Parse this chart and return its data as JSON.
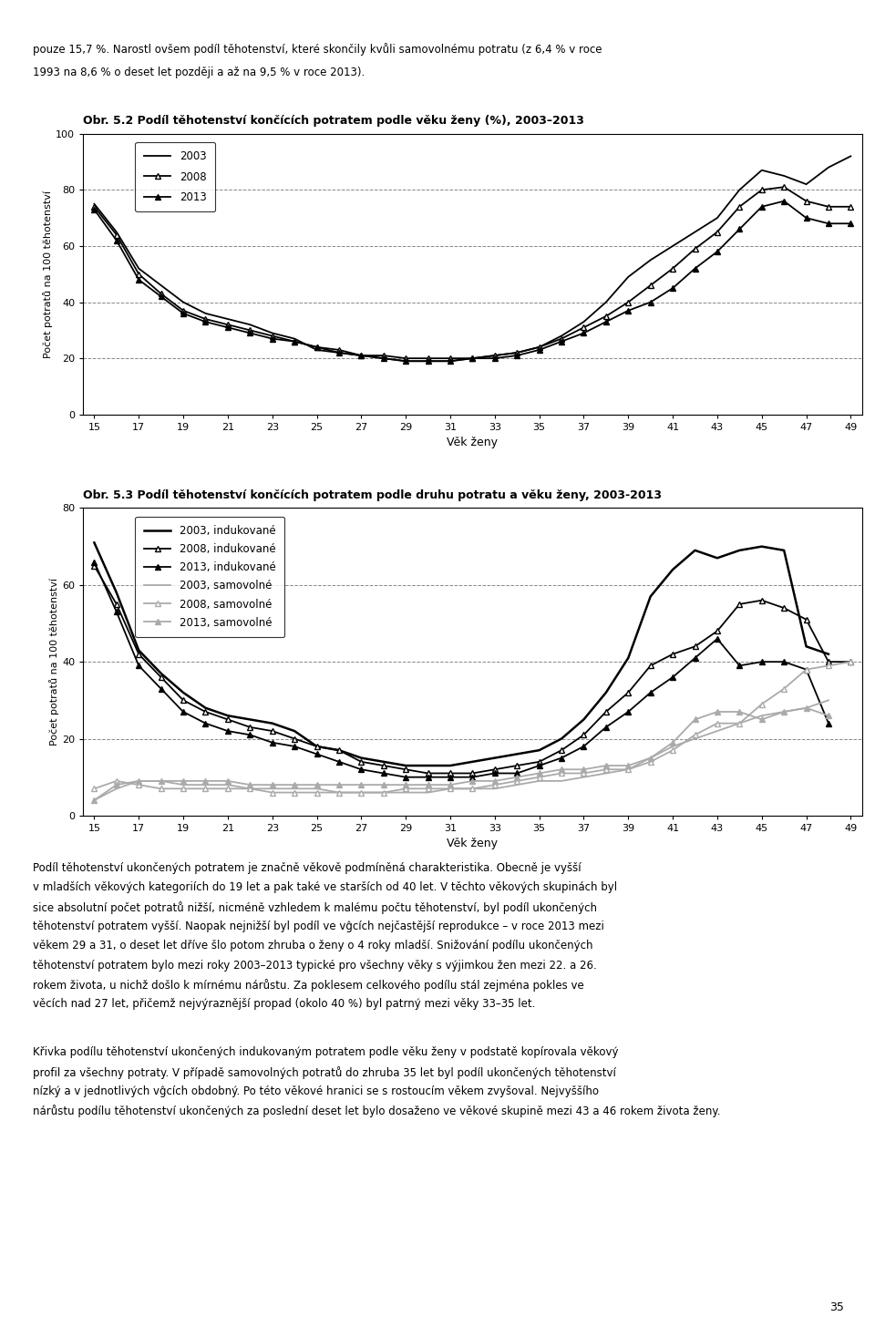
{
  "title1": "Obr. 5.2 Podíl těhotenství končících potratem podle věku ženy (%), 2003–2013",
  "title2": "Obr. 5.3 Podíl těhotenství končících potratem podle druhu potratu a věku ženy, 2003-2013",
  "xlabel": "Věk ženy",
  "ylabel": "Počet potratů na 100 těhotenství",
  "ages": [
    15,
    16,
    17,
    18,
    19,
    20,
    21,
    22,
    23,
    24,
    25,
    26,
    27,
    28,
    29,
    30,
    31,
    32,
    33,
    34,
    35,
    36,
    37,
    38,
    39,
    40,
    41,
    42,
    43,
    44,
    45,
    46,
    47,
    48,
    49
  ],
  "chart1": {
    "y2003": [
      75,
      65,
      52,
      46,
      40,
      36,
      34,
      32,
      29,
      27,
      23,
      22,
      21,
      20,
      19,
      19,
      19,
      20,
      21,
      22,
      24,
      28,
      33,
      40,
      49,
      55,
      60,
      65,
      70,
      80,
      87,
      85,
      82,
      88,
      92
    ],
    "y2008": [
      74,
      64,
      50,
      43,
      37,
      34,
      32,
      30,
      28,
      26,
      24,
      23,
      21,
      21,
      20,
      20,
      20,
      20,
      21,
      22,
      24,
      27,
      31,
      35,
      40,
      46,
      52,
      59,
      65,
      74,
      80,
      81,
      76,
      74,
      74
    ],
    "y2013": [
      73,
      62,
      48,
      42,
      36,
      33,
      31,
      29,
      27,
      26,
      24,
      22,
      21,
      20,
      19,
      19,
      19,
      20,
      20,
      21,
      23,
      26,
      29,
      33,
      37,
      40,
      45,
      52,
      58,
      66,
      74,
      76,
      70,
      68,
      68
    ]
  },
  "chart2_induced": {
    "y2003": [
      71,
      58,
      43,
      37,
      32,
      28,
      26,
      25,
      24,
      22,
      18,
      17,
      15,
      14,
      13,
      13,
      13,
      14,
      15,
      16,
      17,
      20,
      25,
      32,
      41,
      57,
      64,
      69,
      67,
      69,
      70,
      69,
      44,
      42,
      null
    ],
    "y2008": [
      65,
      55,
      42,
      36,
      30,
      27,
      25,
      23,
      22,
      20,
      18,
      17,
      14,
      13,
      12,
      11,
      11,
      11,
      12,
      13,
      14,
      17,
      21,
      27,
      32,
      39,
      42,
      44,
      48,
      55,
      56,
      54,
      51,
      40,
      40
    ],
    "y2013": [
      66,
      53,
      39,
      33,
      27,
      24,
      22,
      21,
      19,
      18,
      16,
      14,
      12,
      11,
      10,
      10,
      10,
      10,
      11,
      11,
      13,
      15,
      18,
      23,
      27,
      32,
      36,
      41,
      46,
      39,
      40,
      40,
      38,
      24,
      null
    ]
  },
  "chart2_spontaneous": {
    "y2003": [
      4,
      7,
      9,
      9,
      8,
      8,
      8,
      7,
      7,
      7,
      7,
      6,
      6,
      6,
      6,
      6,
      7,
      7,
      7,
      8,
      9,
      9,
      10,
      11,
      12,
      15,
      18,
      20,
      22,
      24,
      26,
      27,
      28,
      30,
      null
    ],
    "y2008": [
      7,
      9,
      8,
      7,
      7,
      7,
      7,
      7,
      6,
      6,
      6,
      6,
      6,
      6,
      7,
      7,
      7,
      7,
      8,
      9,
      10,
      11,
      11,
      12,
      12,
      14,
      17,
      21,
      24,
      24,
      29,
      33,
      38,
      39,
      40
    ],
    "y2013": [
      4,
      8,
      9,
      9,
      9,
      9,
      9,
      8,
      8,
      8,
      8,
      8,
      8,
      8,
      8,
      8,
      8,
      9,
      9,
      10,
      11,
      12,
      12,
      13,
      13,
      15,
      19,
      25,
      27,
      27,
      25,
      27,
      28,
      26,
      null
    ]
  },
  "header_line1": "pouze 15,7 %. Narostl ovšem podíl těhotenství, které skončily kvůli samovolnému potratu (z 6,4 % v roce",
  "header_line2": "1993 na 8,6 % o deset let později a až na 9,5 % v roce 2013).",
  "footer_texts": [
    "Podíl těhotenství ukončených potratem je značně věkově podmíněná charakteristika. Obecně je vyšší",
    "v mladších věkových kategoriích do 19 let a pak také ve starších od 40 let. V těchto věkových skupinách byl",
    "sice absolutní počet potratů nižší, nicméně vzhledem k malému počtu těhotenství, byl podíl ukončených",
    "těhotenství potratem vyšší. Naopak nejnižší byl podíl ve vĝcích nejčastější reprodukce – v roce 2013 mezi",
    "věkem 29 a 31, o deset let dříve šlo potom zhruba o ženy o 4 roky mladší. Snižování podílu ukončených",
    "těhotenství potratem bylo mezi roky 2003–2013 typické pro všechny věky s výjimkou žen mezi 22. a 26.",
    "rokem života, u nichž došlo k mírnému nárůstu. Za poklesem celkového podílu stál zejména pokles ve",
    "věcích nad 27 let, přičemž nejvýraznější propad (okolo 40 %) byl patrný mezi věky 33–35 let.",
    "",
    "Křivka podílu těhotenství ukončených indukovaným potratem podle věku ženy v podstatě kopírovala věkový",
    "profil za všechny potraty. V případě samovolných potratů do zhruba 35 let byl podíl ukončených těhotenství",
    "nízký a v jednotlivých vĝcích obdobný. Po této věkové hranici se s rostoucím věkem zvyšoval. Nejvyššího",
    "nárůstu podílu těhotenství ukončených za poslední deset let bylo dosaženo ve věkové skupině mezi 43 a 46 rokem života ženy."
  ],
  "page_number": "35"
}
